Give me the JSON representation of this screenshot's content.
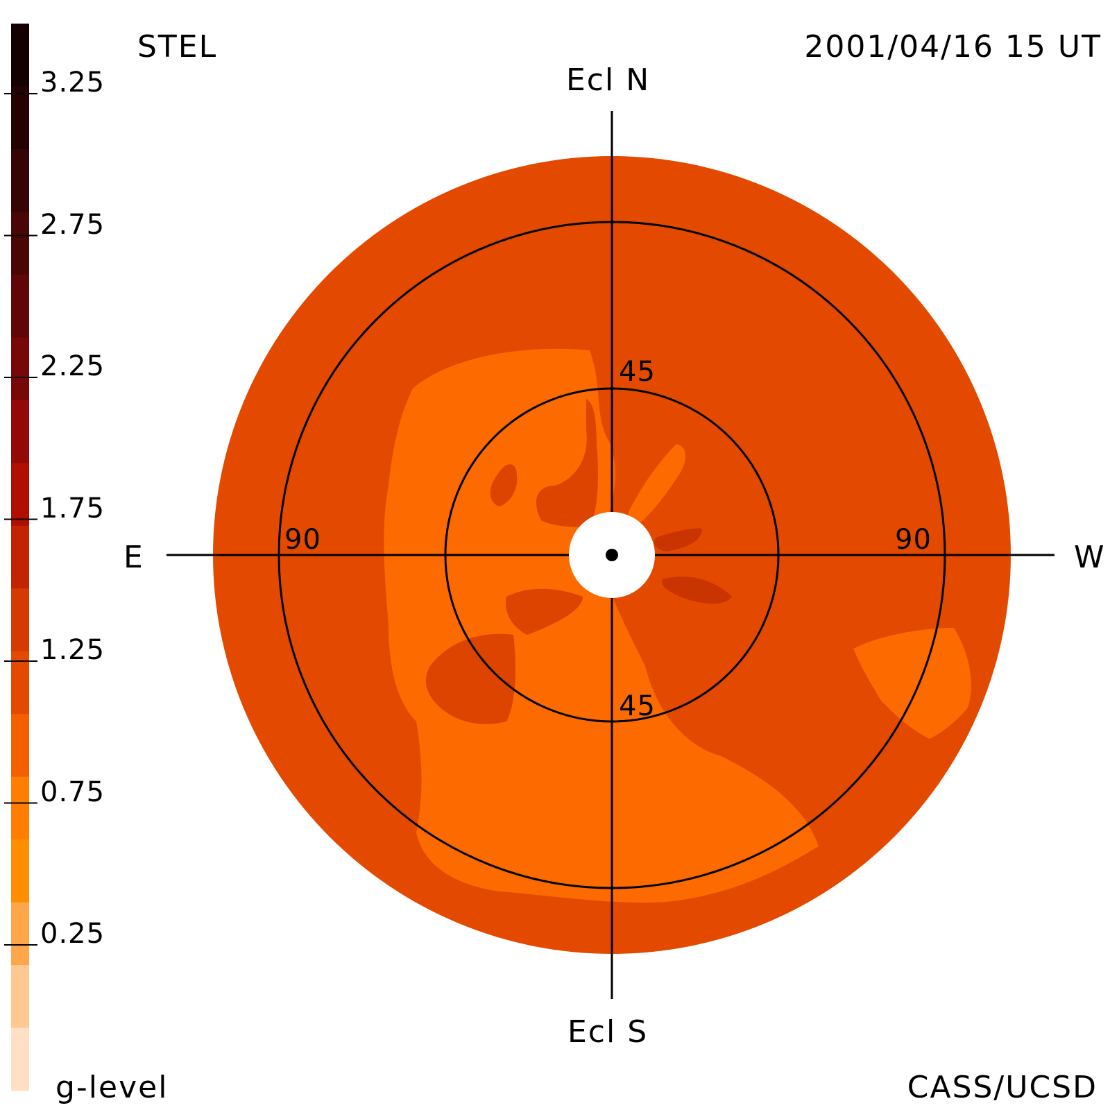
{
  "header": {
    "instrument": "STEL",
    "datetime": "2001/04/16 15 UT"
  },
  "footer": {
    "colorbar_label": "g-level",
    "credit": "CASS/UCSD"
  },
  "directions": {
    "north": "Ecl N",
    "south": "Ecl S",
    "east": "E",
    "west": "W"
  },
  "rings": {
    "inner_top": "45",
    "inner_bottom": "45",
    "outer_left": "90",
    "outer_right": "90"
  },
  "colorbar": {
    "ticks": [
      "3.25",
      "2.75",
      "2.25",
      "1.75",
      "1.25",
      "0.75",
      "0.25"
    ],
    "levels": [
      {
        "color": "#140000"
      },
      {
        "color": "#240202"
      },
      {
        "color": "#360404"
      },
      {
        "color": "#4a0505"
      },
      {
        "color": "#600606"
      },
      {
        "color": "#780707"
      },
      {
        "color": "#940808"
      },
      {
        "color": "#b00e00"
      },
      {
        "color": "#c22400"
      },
      {
        "color": "#d63a00"
      },
      {
        "color": "#e34a00"
      },
      {
        "color": "#f45f00"
      },
      {
        "color": "#ff7d00"
      },
      {
        "color": "#ff8d00"
      },
      {
        "color": "#ffa54a"
      },
      {
        "color": "#ffc890"
      },
      {
        "color": "#ffe0c4"
      }
    ]
  },
  "map_colors": {
    "background": "#e34a00",
    "light_region": "#fd6a00",
    "mid_region": "#dd4400",
    "dark_region": "#c93400",
    "sun_disk": "#ffffff"
  }
}
